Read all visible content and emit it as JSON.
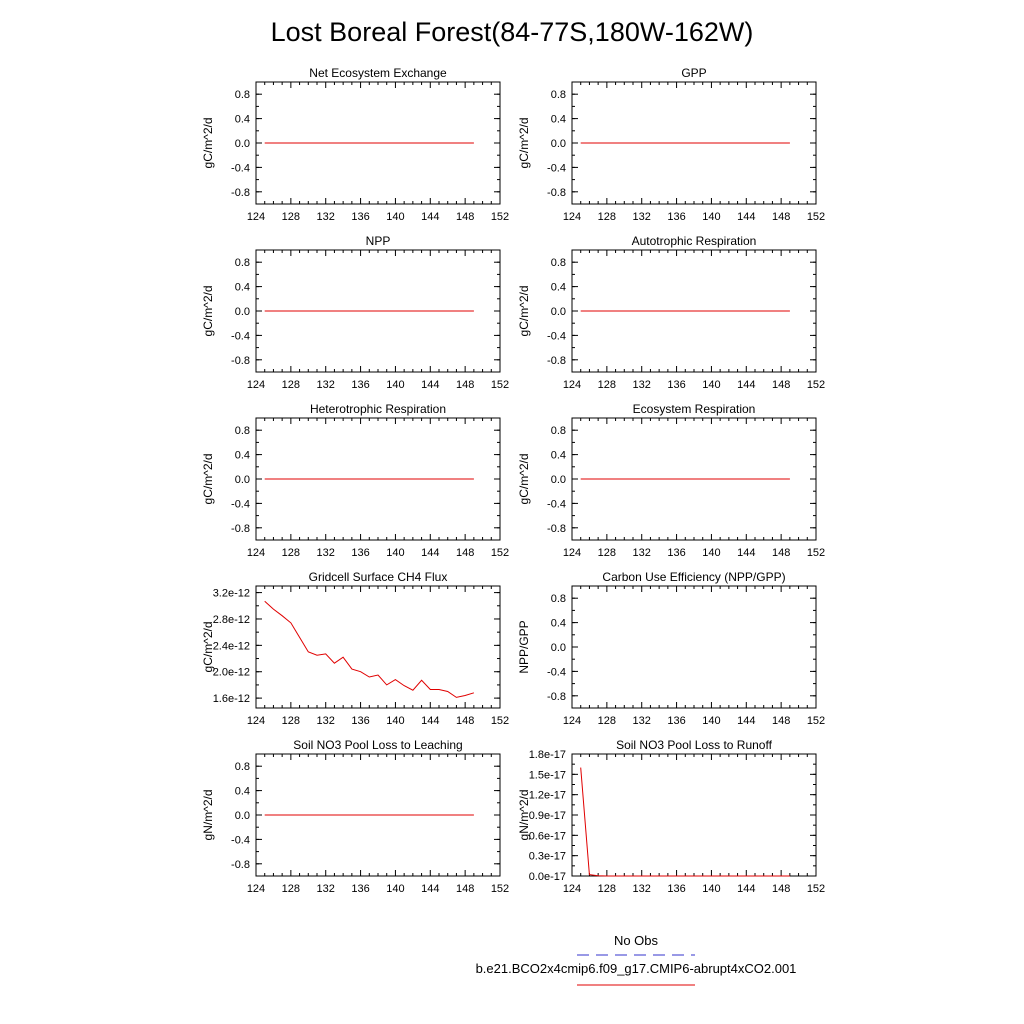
{
  "page_title": "Lost Boreal Forest(84-77S,180W-162W)",
  "legend": {
    "obs_label": "No Obs",
    "obs_color": "#3333cc",
    "model_label": "b.e21.BCO2x4cmip6.f09_g17.CMIP6-abrupt4xCO2.001",
    "model_color": "#e00000"
  },
  "chart_data": [
    {
      "type": "line",
      "title": "Net Ecosystem Exchange",
      "ylabel": "gC/m^2/d",
      "xlim": [
        124,
        152
      ],
      "ylim": [
        -1,
        1
      ],
      "x_ticks": [
        "124",
        "128",
        "132",
        "136",
        "140",
        "144",
        "148",
        "152"
      ],
      "y_ticks": [
        "-0.8",
        "-0.4",
        "0.0",
        "0.4",
        "0.8"
      ],
      "series": [
        {
          "x": [
            125,
            149
          ],
          "y": [
            0,
            0
          ]
        }
      ]
    },
    {
      "type": "line",
      "title": "GPP",
      "ylabel": "gC/m^2/d",
      "xlim": [
        124,
        152
      ],
      "ylim": [
        -1,
        1
      ],
      "x_ticks": [
        "124",
        "128",
        "132",
        "136",
        "140",
        "144",
        "148",
        "152"
      ],
      "y_ticks": [
        "-0.8",
        "-0.4",
        "0.0",
        "0.4",
        "0.8"
      ],
      "series": [
        {
          "x": [
            125,
            149
          ],
          "y": [
            0,
            0
          ]
        }
      ]
    },
    {
      "type": "line",
      "title": "NPP",
      "ylabel": "gC/m^2/d",
      "xlim": [
        124,
        152
      ],
      "ylim": [
        -1,
        1
      ],
      "x_ticks": [
        "124",
        "128",
        "132",
        "136",
        "140",
        "144",
        "148",
        "152"
      ],
      "y_ticks": [
        "-0.8",
        "-0.4",
        "0.0",
        "0.4",
        "0.8"
      ],
      "series": [
        {
          "x": [
            125,
            149
          ],
          "y": [
            0,
            0
          ]
        }
      ]
    },
    {
      "type": "line",
      "title": "Autotrophic Respiration",
      "ylabel": "gC/m^2/d",
      "xlim": [
        124,
        152
      ],
      "ylim": [
        -1,
        1
      ],
      "x_ticks": [
        "124",
        "128",
        "132",
        "136",
        "140",
        "144",
        "148",
        "152"
      ],
      "y_ticks": [
        "-0.8",
        "-0.4",
        "0.0",
        "0.4",
        "0.8"
      ],
      "series": [
        {
          "x": [
            125,
            149
          ],
          "y": [
            0,
            0
          ]
        }
      ]
    },
    {
      "type": "line",
      "title": "Heterotrophic Respiration",
      "ylabel": "gC/m^2/d",
      "xlim": [
        124,
        152
      ],
      "ylim": [
        -1,
        1
      ],
      "x_ticks": [
        "124",
        "128",
        "132",
        "136",
        "140",
        "144",
        "148",
        "152"
      ],
      "y_ticks": [
        "-0.8",
        "-0.4",
        "0.0",
        "0.4",
        "0.8"
      ],
      "series": [
        {
          "x": [
            125,
            149
          ],
          "y": [
            0,
            0
          ]
        }
      ]
    },
    {
      "type": "line",
      "title": "Ecosystem Respiration",
      "ylabel": "gC/m^2/d",
      "xlim": [
        124,
        152
      ],
      "ylim": [
        -1,
        1
      ],
      "x_ticks": [
        "124",
        "128",
        "132",
        "136",
        "140",
        "144",
        "148",
        "152"
      ],
      "y_ticks": [
        "-0.8",
        "-0.4",
        "0.0",
        "0.4",
        "0.8"
      ],
      "series": [
        {
          "x": [
            125,
            149
          ],
          "y": [
            0,
            0
          ]
        }
      ]
    },
    {
      "type": "line",
      "title": "Gridcell Surface CH4 Flux",
      "ylabel": "gC/m^2/d",
      "xlim": [
        124,
        152
      ],
      "ylim": [
        1.45e-12,
        3.3e-12
      ],
      "x_ticks": [
        "124",
        "128",
        "132",
        "136",
        "140",
        "144",
        "148",
        "152"
      ],
      "y_ticks": [
        "1.6e-12",
        "2.0e-12",
        "2.4e-12",
        "2.8e-12",
        "3.2e-12"
      ],
      "y_tick_values": [
        1.6e-12,
        2e-12,
        2.4e-12,
        2.8e-12,
        3.2e-12
      ],
      "series": [
        {
          "x": [
            125,
            126,
            127,
            128,
            129,
            130,
            131,
            132,
            133,
            134,
            135,
            136,
            137,
            138,
            139,
            140,
            141,
            142,
            143,
            144,
            145,
            146,
            147,
            148,
            149
          ],
          "y": [
            3.07e-12,
            2.95e-12,
            2.85e-12,
            2.74e-12,
            2.52e-12,
            2.3e-12,
            2.25e-12,
            2.27e-12,
            2.13e-12,
            2.22e-12,
            2.04e-12,
            2e-12,
            1.92e-12,
            1.95e-12,
            1.8e-12,
            1.88e-12,
            1.79e-12,
            1.72e-12,
            1.87e-12,
            1.73e-12,
            1.73e-12,
            1.7e-12,
            1.61e-12,
            1.64e-12,
            1.68e-12
          ]
        }
      ]
    },
    {
      "type": "line",
      "title": "Carbon Use Efficiency (NPP/GPP)",
      "ylabel": "NPP/GPP",
      "xlim": [
        124,
        152
      ],
      "ylim": [
        -1,
        1
      ],
      "x_ticks": [
        "124",
        "128",
        "132",
        "136",
        "140",
        "144",
        "148",
        "152"
      ],
      "y_ticks": [
        "-0.8",
        "-0.4",
        "0.0",
        "0.4",
        "0.8"
      ],
      "series": []
    },
    {
      "type": "line",
      "title": "Soil NO3 Pool Loss to Leaching",
      "ylabel": "gN/m^2/d",
      "xlim": [
        124,
        152
      ],
      "ylim": [
        -1,
        1
      ],
      "x_ticks": [
        "124",
        "128",
        "132",
        "136",
        "140",
        "144",
        "148",
        "152"
      ],
      "y_ticks": [
        "-0.8",
        "-0.4",
        "0.0",
        "0.4",
        "0.8"
      ],
      "series": [
        {
          "x": [
            125,
            149
          ],
          "y": [
            0,
            0
          ]
        }
      ]
    },
    {
      "type": "line",
      "title": "Soil NO3 Pool Loss to Runoff",
      "ylabel": "gN/m^2/d",
      "xlim": [
        124,
        152
      ],
      "ylim": [
        0,
        1.8e-17
      ],
      "x_ticks": [
        "124",
        "128",
        "132",
        "136",
        "140",
        "144",
        "148",
        "152"
      ],
      "y_ticks": [
        "0.0e-17",
        "0.3e-17",
        "0.6e-17",
        "0.9e-17",
        "1.2e-17",
        "1.5e-17",
        "1.8e-17"
      ],
      "y_tick_values": [
        0,
        3e-18,
        6e-18,
        9e-18,
        1.2e-17,
        1.5e-17,
        1.8e-17
      ],
      "series": [
        {
          "x": [
            125,
            126,
            127,
            128,
            129,
            130,
            131,
            132,
            133,
            134,
            135,
            136,
            137,
            138,
            139,
            140,
            141,
            142,
            143,
            144,
            145,
            146,
            147,
            148,
            149
          ],
          "y": [
            1.6e-17,
            2e-19,
            3e-20,
            0,
            0,
            0,
            0,
            0,
            0,
            0,
            0,
            0,
            0,
            0,
            0,
            0,
            0,
            0,
            0,
            0,
            0,
            0,
            0,
            0,
            0
          ]
        }
      ]
    }
  ]
}
